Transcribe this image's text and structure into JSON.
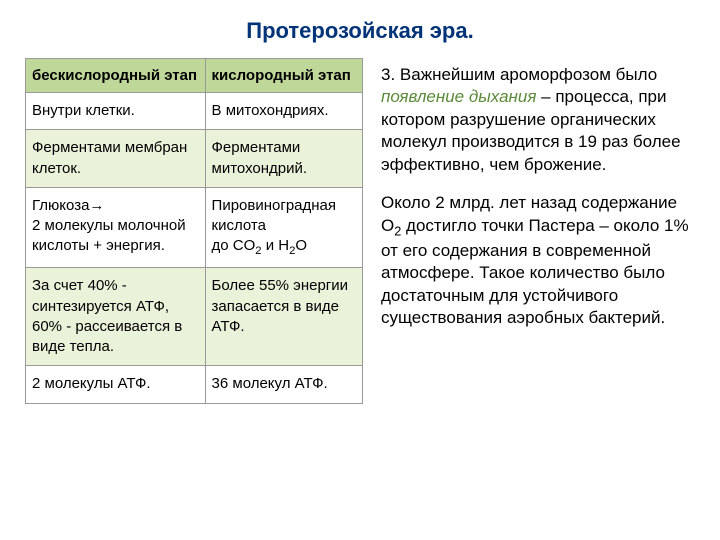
{
  "title": "Протерозойская эра.",
  "table": {
    "headers": [
      "бескислородный этап",
      "кислородный этап"
    ],
    "rows": [
      {
        "bg": "row-white",
        "cells": [
          "Внутри клетки.",
          "В митохондриях."
        ]
      },
      {
        "bg": "row-light",
        "cells": [
          "Ферментами мембран клеток.",
          "Ферментами митохондрий."
        ]
      },
      {
        "bg": "row-white",
        "cells": [
          "Глюкоза→\n2 молекулы молочной кислоты + энергия.",
          "Пировиноградная кислота\nдо CO₂ и H₂O"
        ]
      },
      {
        "bg": "row-light",
        "cells": [
          "За счет 40% - синтезируется АТФ, 60% - рассеивается в виде тепла.",
          "Более 55% энергии запасается в виде АТФ."
        ]
      },
      {
        "bg": "row-white",
        "cells": [
          "2 молекулы АТФ.",
          "36 молекул АТФ."
        ]
      }
    ]
  },
  "paragraphs": {
    "p1_prefix": "3. Важнейшим ароморфозом было ",
    "p1_emph": "появление дыхания",
    "p1_suffix": " – процесса, при котором разрушение органических молекул производится в 19 раз более эффективно, чем брожение.",
    "p2_a": "Около 2 млрд. лет назад содержание O",
    "p2_sub": "2",
    "p2_b": " достигло точки Пастера – около 1% от его содержания в современной атмосфере. Такое количество было достаточным для устойчивого существования аэробных бактерий."
  }
}
